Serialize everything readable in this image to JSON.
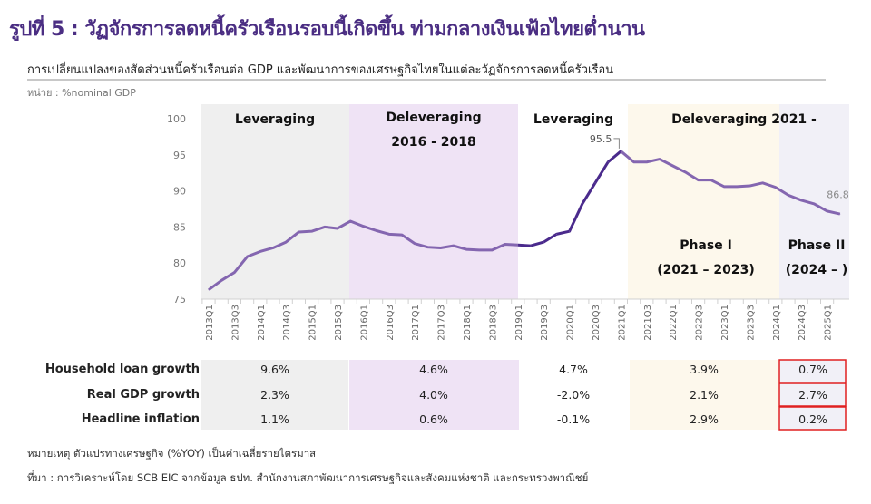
{
  "header": {
    "title": "รูปที่ 5 : วัฏจักรการลดหนี้ครัวเรือนรอบนี้เกิดขึ้น ท่ามกลางเงินเฟ้อไทยต่ำนาน",
    "subtitle": "การเปลี่ยนแปลงของสัดส่วนหนี้ครัวเรือนต่อ  GDP และพัฒนาการของเศรษฐกิจไทยในแต่ละวัฏจักรการลดหนี้ครัวเรือน",
    "unit": "หน่วย : %nominal GDP"
  },
  "colors": {
    "line": "#8466b0",
    "line_highlight": "#4a2a8c",
    "band_gray": "#efefef",
    "band_lavender": "#efe3f5",
    "band_cream": "#fdf8ec",
    "band_phase2": "#f1f0f7",
    "highlight_box": "#e02020",
    "title": "#4b2e83"
  },
  "chart_data": {
    "type": "line",
    "title": "",
    "xlabel": "",
    "ylabel": "%nominal GDP",
    "ylim": [
      75,
      100
    ],
    "yticks": [
      "75",
      "80",
      "85",
      "90",
      "95",
      "100"
    ],
    "x": [
      "2013Q1",
      "2013Q2",
      "2013Q3",
      "2013Q4",
      "2014Q1",
      "2014Q2",
      "2014Q3",
      "2014Q4",
      "2015Q1",
      "2015Q2",
      "2015Q3",
      "2015Q4",
      "2016Q1",
      "2016Q2",
      "2016Q3",
      "2016Q4",
      "2017Q1",
      "2017Q2",
      "2017Q3",
      "2017Q4",
      "2018Q1",
      "2018Q2",
      "2018Q3",
      "2018Q4",
      "2019Q1",
      "2019Q2",
      "2019Q3",
      "2019Q4",
      "2020Q1",
      "2020Q2",
      "2020Q3",
      "2020Q4",
      "2021Q1",
      "2021Q2",
      "2021Q3",
      "2021Q4",
      "2022Q1",
      "2022Q2",
      "2022Q3",
      "2022Q4",
      "2023Q1",
      "2023Q2",
      "2023Q3",
      "2023Q4",
      "2024Q1",
      "2024Q2",
      "2024Q3",
      "2024Q4",
      "2025Q1",
      "2025Q2"
    ],
    "series": [
      {
        "name": "Household debt to GDP",
        "values": [
          76.3,
          77.6,
          78.7,
          80.9,
          81.6,
          82.1,
          82.9,
          84.3,
          84.4,
          85.0,
          84.8,
          85.8,
          85.1,
          84.5,
          84.0,
          83.9,
          82.7,
          82.2,
          82.1,
          82.4,
          81.9,
          81.8,
          81.8,
          82.6,
          82.5,
          82.4,
          82.9,
          84.0,
          84.4,
          88.2,
          91.1,
          94.0,
          95.5,
          94.0,
          94.0,
          94.4,
          93.5,
          92.6,
          91.5,
          91.5,
          90.6,
          90.6,
          90.7,
          91.1,
          90.5,
          89.4,
          88.7,
          88.2,
          87.2,
          86.8
        ]
      }
    ],
    "highlight_segment": [
      "2019Q1",
      "2021Q1"
    ],
    "annotations": [
      {
        "x": "2021Q1",
        "label": "95.5"
      },
      {
        "x": "2025Q2",
        "label": "86.8"
      }
    ],
    "bands": [
      {
        "from": "2013Q1",
        "to": "2015Q4",
        "label": "Leveraging",
        "label2": ""
      },
      {
        "from": "2015Q4",
        "to": "2019Q1",
        "label": "Deleveraging",
        "label2": "2016 - 2018"
      },
      {
        "from": "2019Q1",
        "to": "2021Q1",
        "label": "Leveraging",
        "label2": ""
      },
      {
        "from": "2021Q1",
        "to": "2023Q4",
        "label": "Deleveraging 2021 -",
        "label2": "",
        "phase": "Phase I",
        "phase_period": "(2021 – 2023)"
      },
      {
        "from": "2024Q1",
        "to": "2025Q2",
        "label": "",
        "label2": "",
        "phase": "Phase II",
        "phase_period": "(2024 – )"
      }
    ],
    "grid": false
  },
  "table": {
    "rows": [
      {
        "label": "Household loan growth",
        "values": [
          "9.6%",
          "4.6%",
          "4.7%",
          "3.9%",
          "0.7%"
        ]
      },
      {
        "label": "Real GDP growth",
        "values": [
          "2.3%",
          "4.0%",
          "-2.0%",
          "2.1%",
          "2.7%"
        ]
      },
      {
        "label": "Headline inflation",
        "values": [
          "1.1%",
          "0.6%",
          "-0.1%",
          "2.9%",
          "0.2%"
        ]
      }
    ]
  },
  "footer": {
    "note": "หมายเหตุ ตัวแปรทางเศรษฐกิจ (%YOY) เป็นค่าเฉลี่ยรายไตรมาส",
    "source": "ที่มา : การวิเคราะห์โดย  SCB EIC จากข้อมูล ธปท. สำนักงานสภาพัฒนาการเศรษฐกิจและสังคมแห่งชาติ  และกระทรวงพาณิชย์"
  }
}
